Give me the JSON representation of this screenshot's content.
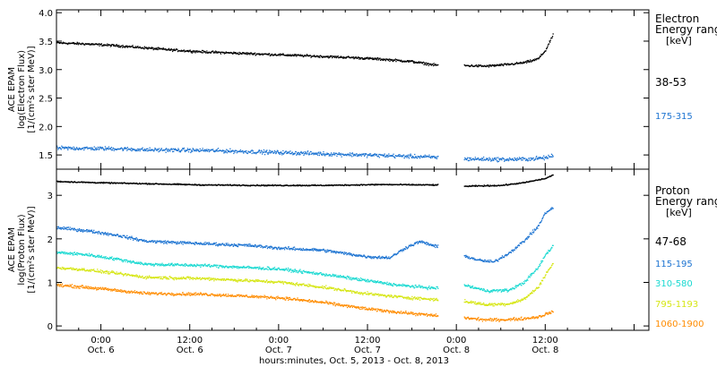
{
  "chart_data": [
    {
      "type": "scatter",
      "title": "",
      "xlabel": "",
      "ylabel_lines": [
        "ACE EPAM",
        "log(Electron Flux)",
        "[1/(cm²s ster MeV)]"
      ],
      "xlim": [
        0,
        80
      ],
      "ylim": [
        1.25,
        4.05
      ],
      "yticks": [
        1.5,
        2.0,
        2.5,
        3.0,
        3.5,
        4.0
      ],
      "ytick_labels": [
        "1.5",
        "2.0",
        "2.5",
        "3.0",
        "3.5",
        "4.0"
      ],
      "legend": {
        "title_lines": [
          "Electron",
          "Energy ranges",
          "[keV]"
        ],
        "placement": "right"
      },
      "gaps": [
        [
          51.5,
          55.0
        ]
      ],
      "series": [
        {
          "name": "38-53",
          "color": "#000000",
          "x": [
            0,
            4,
            8,
            12,
            16,
            20,
            24,
            28,
            32,
            36,
            40,
            44,
            48,
            51,
            55,
            58,
            61,
            63,
            64,
            65,
            66,
            67
          ],
          "y": [
            3.48,
            3.46,
            3.43,
            3.39,
            3.35,
            3.32,
            3.3,
            3.28,
            3.26,
            3.24,
            3.22,
            3.19,
            3.15,
            3.09,
            3.08,
            3.07,
            3.1,
            3.13,
            3.16,
            3.2,
            3.35,
            3.62
          ],
          "noise": 0.03
        },
        {
          "name": "175-315",
          "color": "#1c73d1",
          "x": [
            0,
            8,
            12,
            20,
            28,
            36,
            44,
            51,
            55,
            61,
            64,
            66,
            67
          ],
          "y": [
            1.63,
            1.62,
            1.6,
            1.59,
            1.56,
            1.53,
            1.5,
            1.47,
            1.44,
            1.43,
            1.44,
            1.46,
            1.5
          ],
          "noise": 0.05
        }
      ]
    },
    {
      "type": "scatter",
      "title": "",
      "xlabel": "hours:minutes, Oct. 5, 2013 - Oct. 8, 2013",
      "ylabel_lines": [
        "ACE EPAM",
        "log(Proton Flux)",
        "[1/(cm²s ster MeV)]"
      ],
      "xlim": [
        0,
        80
      ],
      "ylim": [
        -0.1,
        3.6
      ],
      "yticks": [
        0,
        1,
        2,
        3
      ],
      "ytick_labels": [
        "0",
        "1",
        "2",
        "3"
      ],
      "xticks": [
        6,
        18,
        30,
        42,
        54,
        66
      ],
      "xtick_labels": [
        [
          "0:00",
          "Oct. 6"
        ],
        [
          "12:00",
          "Oct. 6"
        ],
        [
          "0:00",
          "Oct. 7"
        ],
        [
          "12:00",
          "Oct. 7"
        ],
        [
          "0:00",
          "Oct. 8"
        ],
        [
          "12:00",
          "Oct. 8"
        ]
      ],
      "legend": {
        "title_lines": [
          "Proton",
          "Energy ranges",
          "[keV]"
        ],
        "placement": "right"
      },
      "gaps": [
        [
          51.5,
          55.0
        ]
      ],
      "series": [
        {
          "name": "47-68",
          "color": "#000000",
          "x": [
            0,
            6,
            12,
            20,
            28,
            36,
            44,
            51,
            55,
            60,
            63,
            66,
            67
          ],
          "y": [
            3.33,
            3.3,
            3.28,
            3.25,
            3.24,
            3.24,
            3.26,
            3.25,
            3.22,
            3.24,
            3.3,
            3.4,
            3.48
          ],
          "noise": 0.02
        },
        {
          "name": "115-195",
          "color": "#1c73d1",
          "x": [
            0,
            4,
            8,
            12,
            20,
            26,
            30,
            36,
            42,
            45,
            47,
            49,
            51,
            55,
            57,
            59,
            61,
            63,
            65,
            66,
            67
          ],
          "y": [
            2.27,
            2.2,
            2.1,
            1.96,
            1.9,
            1.86,
            1.8,
            1.75,
            1.6,
            1.58,
            1.8,
            1.95,
            1.85,
            1.62,
            1.52,
            1.48,
            1.68,
            1.95,
            2.3,
            2.62,
            2.72
          ],
          "noise": 0.05
        },
        {
          "name": "310-580",
          "color": "#1ad9d1",
          "x": [
            0,
            4,
            8,
            12,
            20,
            30,
            36,
            42,
            46,
            51,
            55,
            58,
            61,
            63,
            65,
            66,
            67
          ],
          "y": [
            1.7,
            1.65,
            1.55,
            1.43,
            1.4,
            1.32,
            1.2,
            1.05,
            0.95,
            0.88,
            0.95,
            0.82,
            0.83,
            1.0,
            1.35,
            1.65,
            1.85
          ],
          "noise": 0.05
        },
        {
          "name": "795-1193",
          "color": "#d6e615",
          "x": [
            0,
            4,
            8,
            12,
            20,
            30,
            36,
            42,
            46,
            51,
            55,
            58,
            61,
            63,
            65,
            66,
            67
          ],
          "y": [
            1.35,
            1.3,
            1.22,
            1.13,
            1.1,
            1.02,
            0.9,
            0.75,
            0.68,
            0.62,
            0.58,
            0.5,
            0.52,
            0.62,
            0.9,
            1.2,
            1.45
          ],
          "noise": 0.05
        },
        {
          "name": "1060-1900",
          "color": "#ff8c00",
          "x": [
            0,
            4,
            8,
            12,
            20,
            30,
            36,
            42,
            46,
            51,
            55,
            58,
            61,
            63,
            65,
            66,
            67
          ],
          "y": [
            0.95,
            0.9,
            0.83,
            0.76,
            0.74,
            0.66,
            0.55,
            0.4,
            0.33,
            0.25,
            0.2,
            0.15,
            0.16,
            0.18,
            0.22,
            0.28,
            0.35
          ],
          "noise": 0.05
        }
      ]
    }
  ]
}
